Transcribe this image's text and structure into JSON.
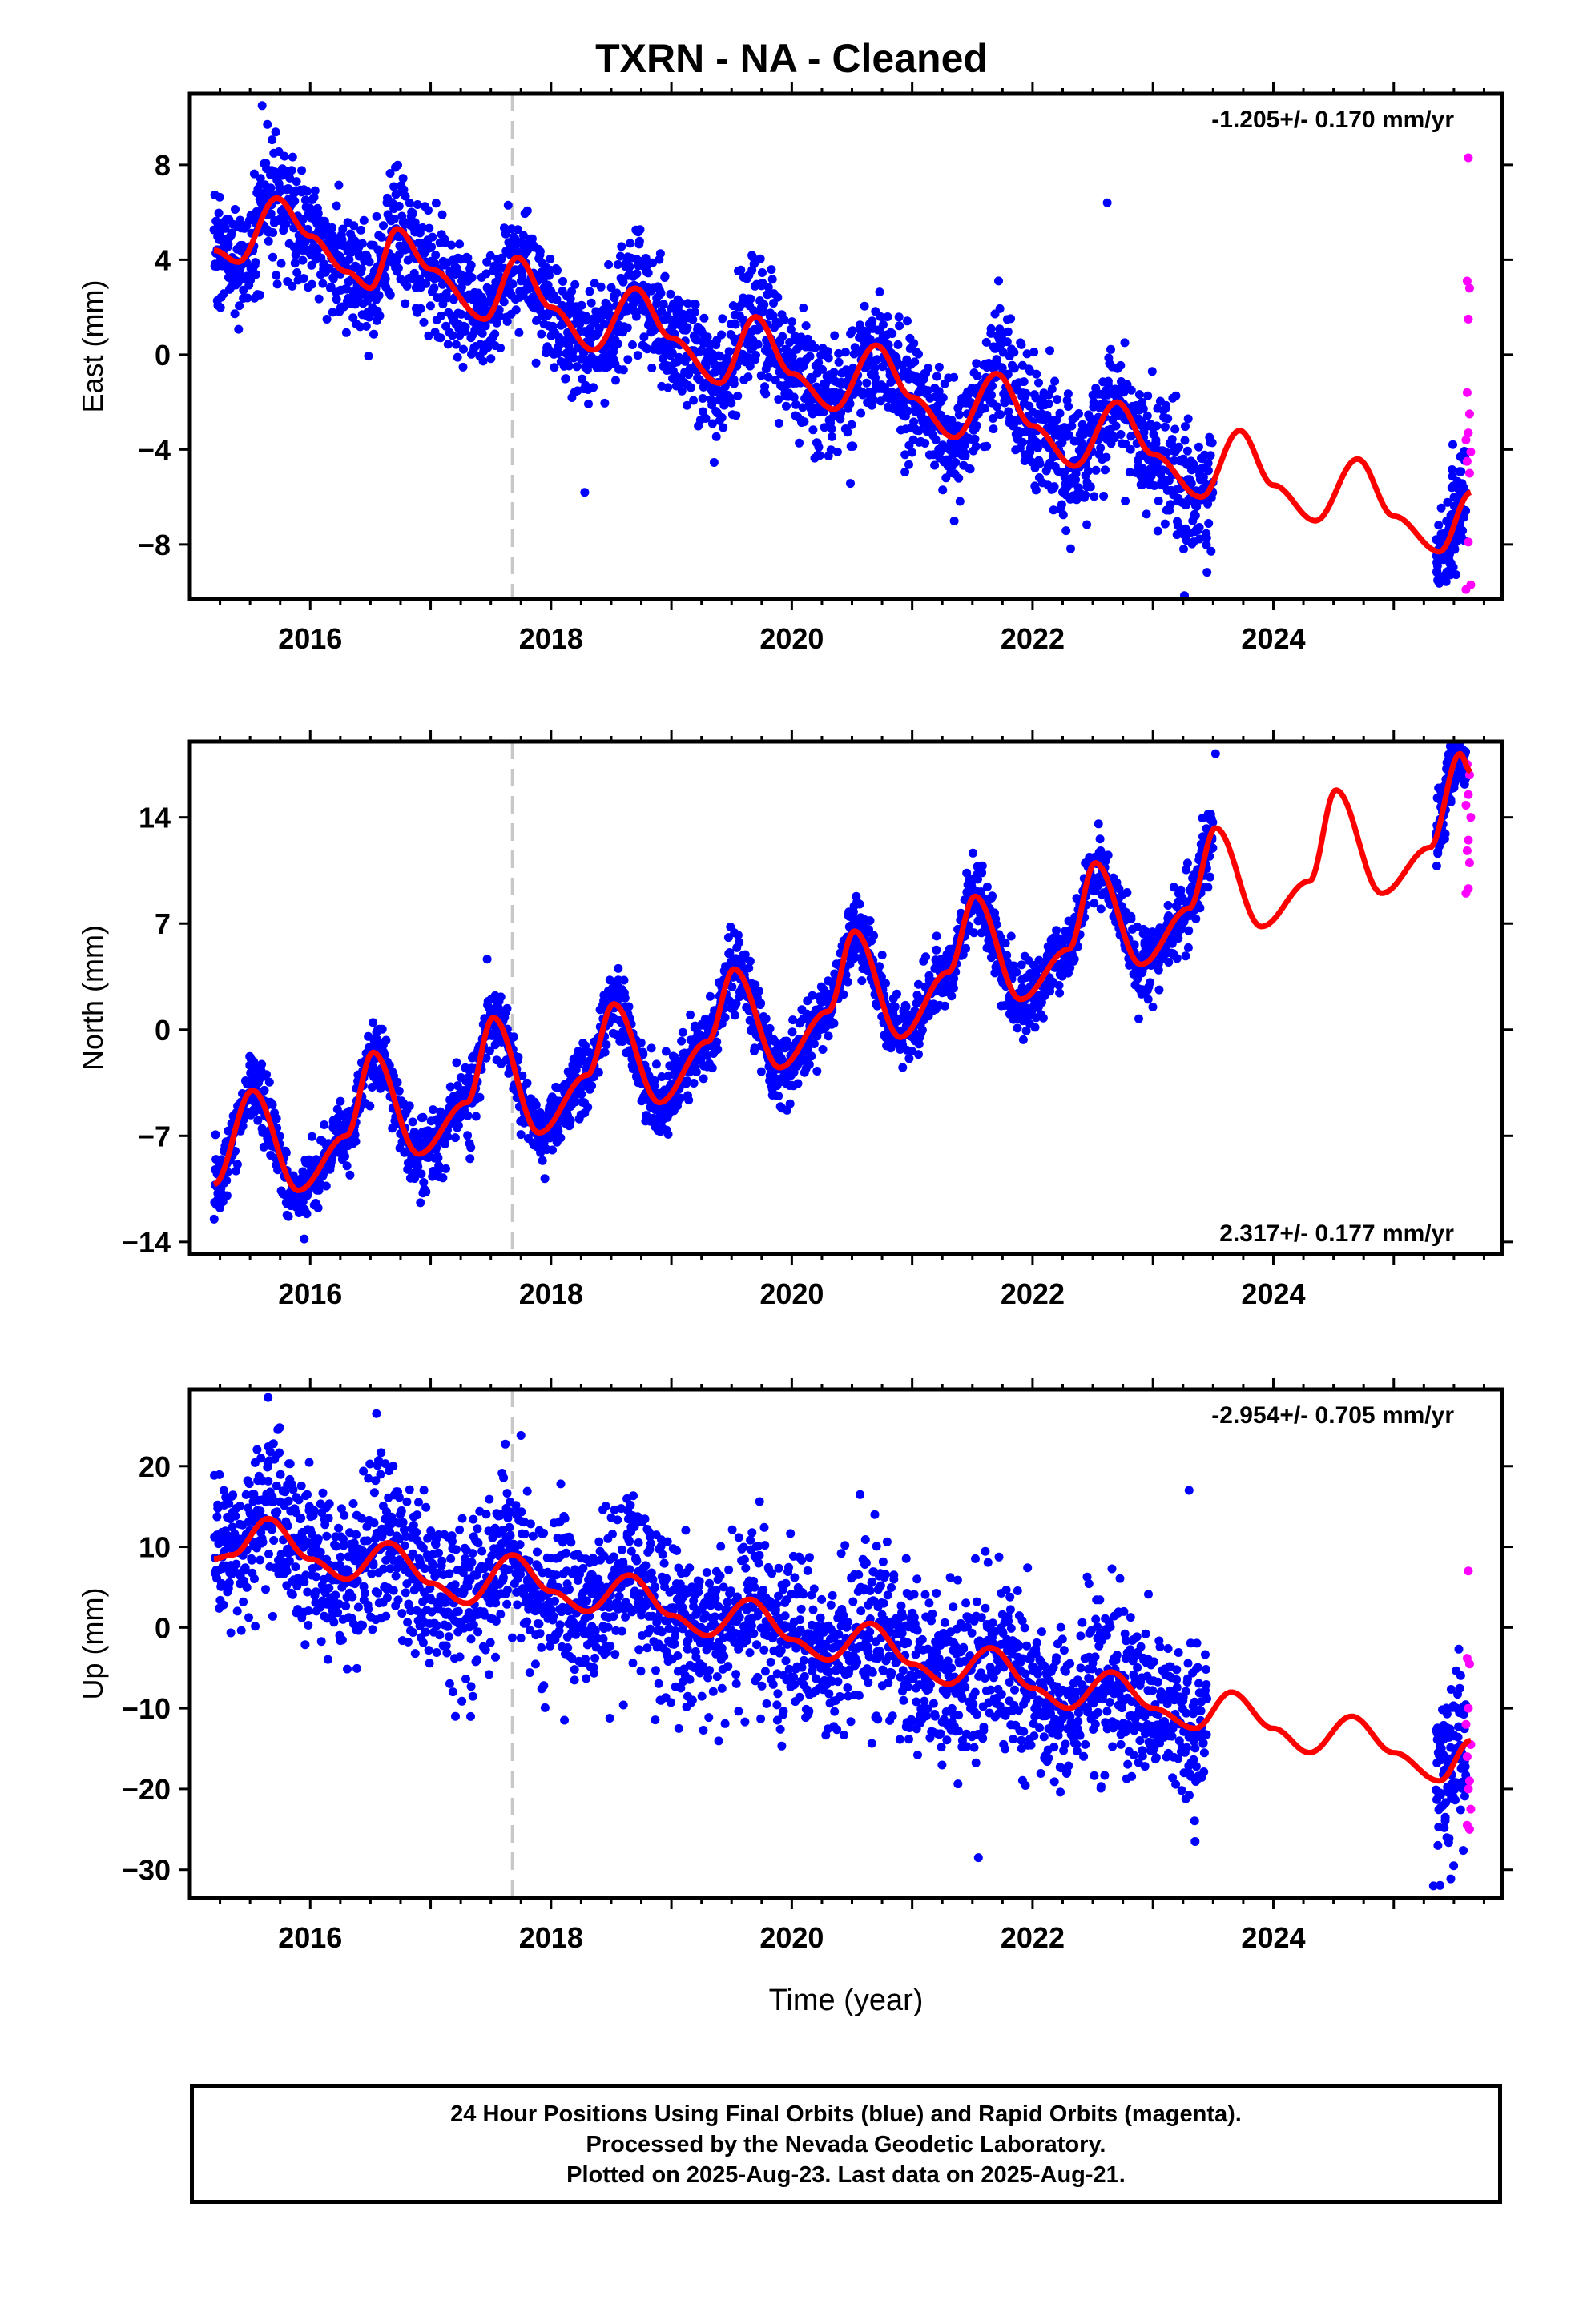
{
  "title": "TXRN  - NA - Cleaned",
  "footer": {
    "line1": "24 Hour Positions Using Final Orbits (blue) and Rapid Orbits (magenta).",
    "line2": "Processed by the Nevada Geodetic Laboratory.",
    "line3": "Plotted on 2025-Aug-23. Last data on 2025-Aug-21."
  },
  "colors": {
    "final_orbits": "#0000ff",
    "rapid_orbits": "#ff00ff",
    "model": "#ff0000",
    "marker_line": "#c8c8c8"
  },
  "chart_data": [
    {
      "type": "scatter",
      "name": "east",
      "ylabel": "East (mm)",
      "xlabel": "",
      "xlim": [
        2015.0,
        2025.9
      ],
      "ylim": [
        -10.3,
        11.0
      ],
      "yticks": [
        -8,
        -4,
        0,
        4,
        8
      ],
      "xticks": [
        2016,
        2018,
        2020,
        2022,
        2024
      ],
      "rate": "-1.205+/- 0.170 mm/yr",
      "rate_position": "top-right",
      "equipment_change": 2017.68,
      "final_span": [
        2015.2,
        2023.5
      ],
      "final_span2": [
        2025.35,
        2025.6
      ],
      "rapid_span": [
        2025.6,
        2025.64
      ],
      "trend": -1.205,
      "model_keypoints": [
        [
          2015.2,
          4.4
        ],
        [
          2015.4,
          3.9
        ],
        [
          2015.72,
          6.6
        ],
        [
          2016.0,
          5.0
        ],
        [
          2016.3,
          3.5
        ],
        [
          2016.5,
          2.8
        ],
        [
          2016.72,
          5.3
        ],
        [
          2017.0,
          3.6
        ],
        [
          2017.45,
          1.5
        ],
        [
          2017.72,
          4.1
        ],
        [
          2018.0,
          2.0
        ],
        [
          2018.35,
          0.2
        ],
        [
          2018.7,
          2.8
        ],
        [
          2019.0,
          0.7
        ],
        [
          2019.4,
          -1.2
        ],
        [
          2019.7,
          1.6
        ],
        [
          2020.0,
          -0.8
        ],
        [
          2020.35,
          -2.3
        ],
        [
          2020.7,
          0.4
        ],
        [
          2021.0,
          -1.8
        ],
        [
          2021.35,
          -3.5
        ],
        [
          2021.7,
          -0.8
        ],
        [
          2022.0,
          -3.0
        ],
        [
          2022.35,
          -4.7
        ],
        [
          2022.7,
          -2.0
        ],
        [
          2023.0,
          -4.2
        ],
        [
          2023.4,
          -6.0
        ],
        [
          2023.72,
          -3.2
        ],
        [
          2024.0,
          -5.5
        ],
        [
          2024.35,
          -7.0
        ],
        [
          2024.7,
          -4.4
        ],
        [
          2025.0,
          -6.8
        ],
        [
          2025.38,
          -8.3
        ],
        [
          2025.64,
          -5.8
        ]
      ],
      "rapid_points": [
        [
          2025.62,
          8.3
        ],
        [
          2025.61,
          3.1
        ],
        [
          2025.63,
          2.8
        ],
        [
          2025.62,
          1.5
        ],
        [
          2025.61,
          -1.6
        ],
        [
          2025.63,
          -2.5
        ],
        [
          2025.62,
          -3.3
        ],
        [
          2025.6,
          -3.6
        ],
        [
          2025.64,
          -4.1
        ],
        [
          2025.61,
          -4.5
        ],
        [
          2025.63,
          -5.0
        ],
        [
          2025.62,
          -7.9
        ],
        [
          2025.6,
          -9.9
        ],
        [
          2025.64,
          -9.7
        ]
      ],
      "outliers": [
        [
          2018.28,
          -5.8
        ],
        [
          2022.62,
          6.4
        ],
        [
          2015.6,
          10.5
        ]
      ]
    },
    {
      "type": "scatter",
      "name": "north",
      "ylabel": "North (mm)",
      "xlabel": "",
      "xlim": [
        2015.0,
        2025.9
      ],
      "ylim": [
        -14.8,
        19.0
      ],
      "yticks": [
        -14,
        -7,
        0,
        7,
        14
      ],
      "xticks": [
        2016,
        2018,
        2020,
        2022,
        2024
      ],
      "rate": "2.317+/- 0.177 mm/yr",
      "rate_position": "bottom-right",
      "equipment_change": 2017.68,
      "final_span": [
        2015.2,
        2023.5
      ],
      "final_span2": [
        2025.35,
        2025.6
      ],
      "rapid_span": [
        2025.6,
        2025.64
      ],
      "trend": 2.317,
      "model_keypoints": [
        [
          2015.2,
          -10.2
        ],
        [
          2015.52,
          -4.0
        ],
        [
          2015.9,
          -10.6
        ],
        [
          2016.3,
          -7.0
        ],
        [
          2016.52,
          -1.5
        ],
        [
          2016.9,
          -8.2
        ],
        [
          2017.3,
          -4.8
        ],
        [
          2017.52,
          0.8
        ],
        [
          2017.9,
          -6.8
        ],
        [
          2018.3,
          -3.0
        ],
        [
          2018.52,
          1.7
        ],
        [
          2018.9,
          -4.8
        ],
        [
          2019.3,
          -0.8
        ],
        [
          2019.52,
          4.0
        ],
        [
          2019.9,
          -2.5
        ],
        [
          2020.3,
          1.2
        ],
        [
          2020.52,
          6.5
        ],
        [
          2020.9,
          -0.5
        ],
        [
          2021.3,
          3.8
        ],
        [
          2021.52,
          8.8
        ],
        [
          2021.9,
          2.0
        ],
        [
          2022.3,
          5.3
        ],
        [
          2022.52,
          11.0
        ],
        [
          2022.9,
          4.3
        ],
        [
          2023.3,
          8.0
        ],
        [
          2023.52,
          13.3
        ],
        [
          2023.9,
          6.8
        ],
        [
          2024.3,
          9.8
        ],
        [
          2024.52,
          15.8
        ],
        [
          2024.9,
          9.0
        ],
        [
          2025.3,
          12.0
        ],
        [
          2025.55,
          18.2
        ],
        [
          2025.64,
          17.0
        ]
      ],
      "rapid_points": [
        [
          2025.61,
          17.5
        ],
        [
          2025.63,
          16.8
        ],
        [
          2025.62,
          15.5
        ],
        [
          2025.6,
          14.8
        ],
        [
          2025.64,
          14.0
        ],
        [
          2025.62,
          12.5
        ],
        [
          2025.61,
          11.8
        ],
        [
          2025.63,
          11.0
        ],
        [
          2025.62,
          9.3
        ],
        [
          2025.6,
          9.0
        ]
      ],
      "outliers": [
        [
          2023.52,
          18.2
        ],
        [
          2015.95,
          -13.8
        ]
      ]
    },
    {
      "type": "scatter",
      "name": "up",
      "ylabel": "Up (mm)",
      "xlabel": "Time (year)",
      "xlim": [
        2015.0,
        2025.9
      ],
      "ylim": [
        -33.5,
        29.5
      ],
      "yticks": [
        -30,
        -20,
        -10,
        0,
        10,
        20
      ],
      "xticks": [
        2016,
        2018,
        2020,
        2022,
        2024
      ],
      "rate": "-2.954+/- 0.705 mm/yr",
      "rate_position": "top-right",
      "equipment_change": 2017.68,
      "final_span": [
        2015.2,
        2023.45
      ],
      "final_span2": [
        2025.35,
        2025.6
      ],
      "rapid_span": [
        2025.6,
        2025.64
      ],
      "trend": -2.954,
      "model_keypoints": [
        [
          2015.2,
          8.5
        ],
        [
          2015.35,
          9.0
        ],
        [
          2015.65,
          13.5
        ],
        [
          2016.0,
          8.5
        ],
        [
          2016.3,
          6.0
        ],
        [
          2016.65,
          10.5
        ],
        [
          2017.0,
          5.5
        ],
        [
          2017.3,
          3.0
        ],
        [
          2017.68,
          9.0
        ],
        [
          2018.0,
          4.5
        ],
        [
          2018.3,
          2.0
        ],
        [
          2018.65,
          6.5
        ],
        [
          2019.0,
          1.5
        ],
        [
          2019.3,
          -1.0
        ],
        [
          2019.65,
          3.5
        ],
        [
          2020.0,
          -1.5
        ],
        [
          2020.3,
          -4.0
        ],
        [
          2020.65,
          0.5
        ],
        [
          2021.0,
          -4.5
        ],
        [
          2021.3,
          -7.0
        ],
        [
          2021.65,
          -2.5
        ],
        [
          2022.0,
          -7.5
        ],
        [
          2022.3,
          -10.0
        ],
        [
          2022.65,
          -5.5
        ],
        [
          2023.0,
          -10.0
        ],
        [
          2023.35,
          -12.5
        ],
        [
          2023.65,
          -8.0
        ],
        [
          2024.0,
          -12.5
        ],
        [
          2024.3,
          -15.5
        ],
        [
          2024.65,
          -11.0
        ],
        [
          2025.0,
          -15.5
        ],
        [
          2025.38,
          -19.0
        ],
        [
          2025.64,
          -14.0
        ]
      ],
      "rapid_points": [
        [
          2025.62,
          7.0
        ],
        [
          2025.61,
          -3.8
        ],
        [
          2025.63,
          -4.5
        ],
        [
          2025.62,
          -10.0
        ],
        [
          2025.6,
          -12.0
        ],
        [
          2025.64,
          -14.5
        ],
        [
          2025.61,
          -16.0
        ],
        [
          2025.63,
          -19.0
        ],
        [
          2025.62,
          -20.0
        ],
        [
          2025.64,
          -22.5
        ],
        [
          2025.61,
          -24.5
        ],
        [
          2025.63,
          -25.0
        ]
      ],
      "outliers": [
        [
          2015.65,
          28.5
        ],
        [
          2017.75,
          23.8
        ],
        [
          2016.55,
          26.5
        ],
        [
          2021.55,
          -28.5
        ],
        [
          2023.3,
          17.0
        ],
        [
          2023.35,
          -26.5
        ],
        [
          2025.33,
          -32.0
        ]
      ]
    }
  ]
}
